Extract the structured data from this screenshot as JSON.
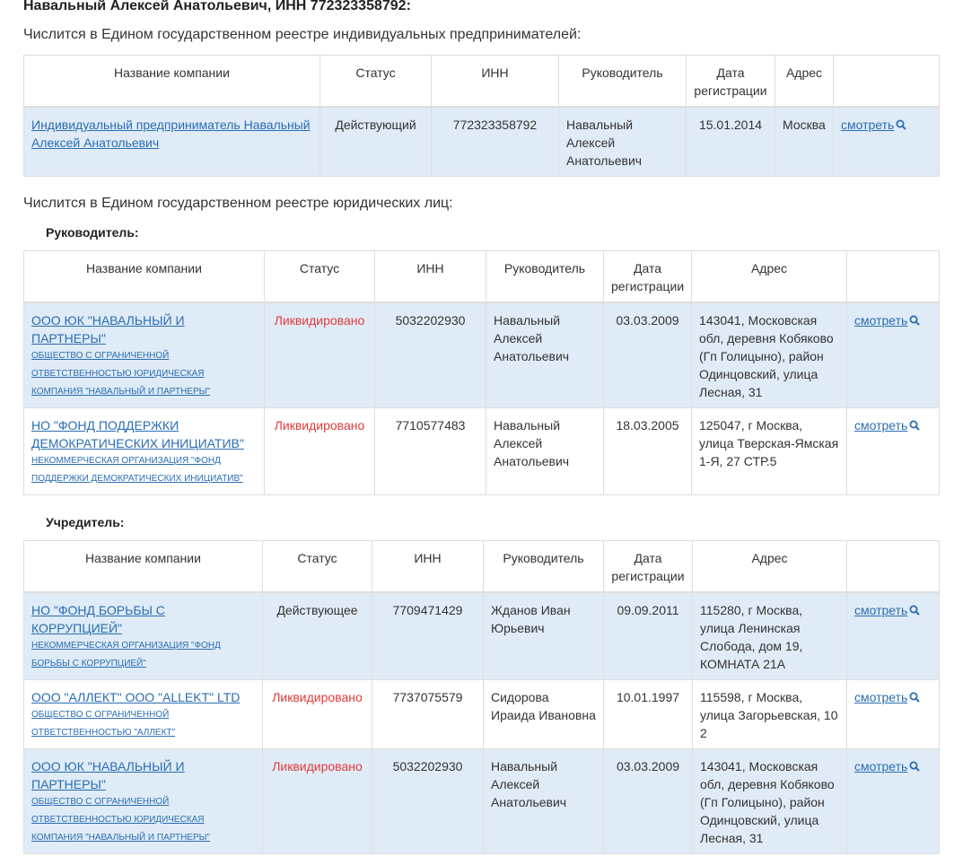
{
  "title": "Навальный Алексей Анатольевич, ИНН 772323358792:",
  "ip_section": {
    "intro": "Числится в Едином государственном реестре индивидуальных предпринимателей:",
    "headers": [
      "Название компании",
      "Статус",
      "ИНН",
      "Руководитель",
      "Дата регистрации",
      "Адрес",
      ""
    ],
    "rows": [
      {
        "name": "Индивидуальный предприниматель Навальный Алексей Анатольевич",
        "status": "Действующий",
        "status_type": "active",
        "inn": "772323358792",
        "head": "Навальный Алексей Анатольевич",
        "date": "15.01.2014",
        "address": "Москва",
        "action": "смотреть"
      }
    ]
  },
  "ul_section": {
    "intro": "Числится в Едином государственном реестре юридических лиц:",
    "manager": {
      "label": "Руководитель:",
      "headers": [
        "Название компании",
        "Статус",
        "ИНН",
        "Руководитель",
        "Дата регистрации",
        "Адрес",
        ""
      ],
      "rows": [
        {
          "name": "ООО ЮК \"НАВАЛЬНЫЙ И ПАРТНЕРЫ\"",
          "full_name": "общество с ограниченной ответственностью юридическая компания \"навальный и партнеры\"",
          "status": "Ликвидировано",
          "inn": "5032202930",
          "head": "Навальный Алексей Анатольевич",
          "date": "03.03.2009",
          "address": "143041, Московская обл, деревня Кобяково (Гп Голицыно), район Одинцовский, улица Лесная, 31",
          "action": "смотреть"
        },
        {
          "name": "НО \"ФОНД ПОДДЕРЖКИ ДЕМОКРАТИЧЕСКИХ ИНИЦИАТИВ\"",
          "full_name": "некоммерческая организация \"фонд поддержки демократических инициатив\"",
          "status": "Ликвидировано",
          "inn": "7710577483",
          "head": "Навальный Алексей Анатольевич",
          "date": "18.03.2005",
          "address": "125047, г Москва, улица Тверская-Ямская 1-Я, 27 СТР.5",
          "action": "смотреть"
        }
      ]
    },
    "founder": {
      "label": "Учредитель:",
      "headers": [
        "Название компании",
        "Статус",
        "ИНН",
        "Руководитель",
        "Дата регистрации",
        "Адрес",
        ""
      ],
      "rows": [
        {
          "name": "НО \"ФОНД БОРЬБЫ С КОРРУПЦИЕЙ\"",
          "full_name": "некоммерческая организация \"фонд борьбы с коррупцией\"",
          "status": "Действующее",
          "inn": "7709471429",
          "head": "Жданов Иван Юрьевич",
          "date": "09.09.2011",
          "address": "115280, г Москва, улица Ленинская Слобода, дом 19, КОМНАТА 21А",
          "action": "смотреть"
        },
        {
          "name": "ООО \"АЛЛЕКТ\" ООО \"ALLEKT\" LTD",
          "full_name": "общество с ограниченной ответственностью \"аллект\"",
          "status": "Ликвидировано",
          "inn": "7737075579",
          "head": "Сидорова Ираида Ивановна",
          "date": "10.01.1997",
          "address": "115598, г Москва, улица Загорьевская, 10 2",
          "action": "смотреть"
        },
        {
          "name": "ООО ЮК \"НАВАЛЬНЫЙ И ПАРТНЕРЫ\"",
          "full_name": "общество с ограниченной ответственностью юридическая компания \"навальный и партнеры\"",
          "status": "Ликвидировано",
          "inn": "5032202930",
          "head": "Навальный Алексей Анатольевич",
          "date": "03.03.2009",
          "address": "143041, Московская обл, деревня Кобяково (Гп Голицыно), район Одинцовский, улица Лесная, 31",
          "action": "смотреть"
        }
      ]
    }
  },
  "colors": {
    "link": "#2a6db3",
    "liquidated": "#e23a3a",
    "row_shade": "#dfebf6",
    "border": "#dedede"
  }
}
